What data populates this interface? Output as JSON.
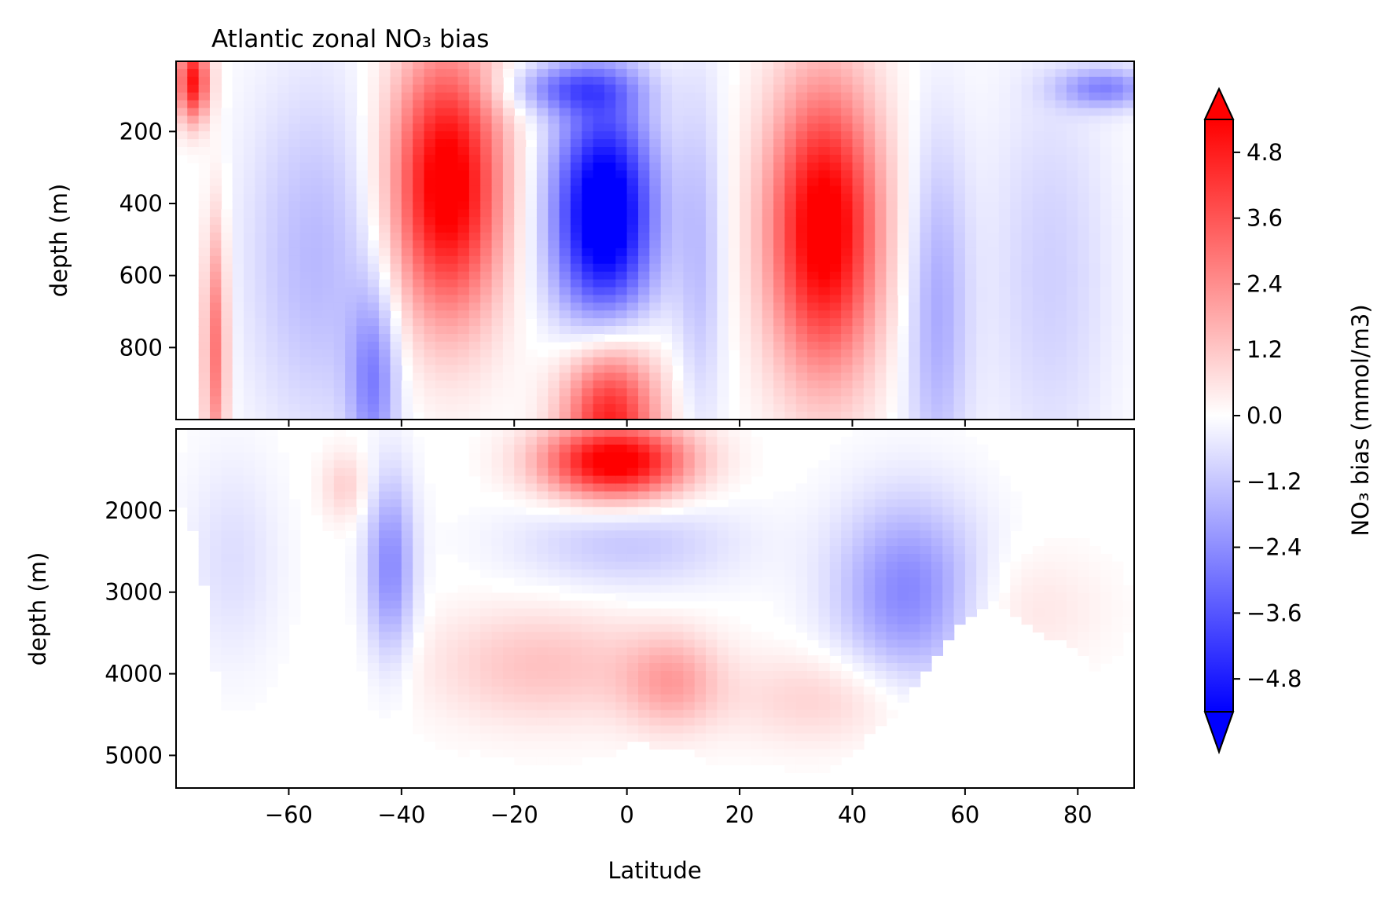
{
  "chart_data": {
    "type": "heatmap",
    "title": "Atlantic zonal NO₃ bias",
    "xlabel": "Latitude",
    "colorbar_label": "NO₃ bias (mmol/m3)",
    "colormap": {
      "low": "#0000ff",
      "mid": "#ffffff",
      "high": "#ff0000"
    },
    "clim": [
      -5.4,
      5.4
    ],
    "colorbar_extend": "both",
    "colorbar_ticks": [
      4.8,
      3.6,
      2.4,
      1.2,
      0.0,
      -1.2,
      -2.4,
      -3.6,
      -4.8
    ],
    "colorbar_tick_labels": [
      "4.8",
      "3.6",
      "2.4",
      "1.2",
      "0.0",
      "−1.2",
      "−2.4",
      "−3.6",
      "−4.8"
    ],
    "xlim": [
      -80,
      90
    ],
    "x_ticks": [
      -60,
      -40,
      -20,
      0,
      20,
      40,
      60,
      80
    ],
    "x_tick_labels": [
      "−60",
      "−40",
      "−20",
      "0",
      "20",
      "40",
      "60",
      "80"
    ],
    "panels": [
      {
        "name": "upper",
        "ylabel": "depth (m)",
        "ylim": [
          1000,
          5
        ],
        "y_ticks": [
          200,
          400,
          600,
          800
        ],
        "y_tick_labels": [
          "200",
          "400",
          "600",
          "800"
        ],
        "features": [
          {
            "lat": -32,
            "depth": 350,
            "value": 6.0,
            "sx": 7,
            "sy": 260
          },
          {
            "lat": -4,
            "depth": 430,
            "value": -6.5,
            "sx": 6.5,
            "sy": 230
          },
          {
            "lat": 35,
            "depth": 470,
            "value": 6.0,
            "sx": 7,
            "sy": 280
          },
          {
            "lat": -3,
            "depth": 1000,
            "value": 5.0,
            "sx": 6,
            "sy": 170
          },
          {
            "lat": -55,
            "depth": 550,
            "value": -1.5,
            "sx": 9,
            "sy": 350
          },
          {
            "lat": -45,
            "depth": 900,
            "value": -2.4,
            "sx": 3,
            "sy": 180
          },
          {
            "lat": 13,
            "depth": 550,
            "value": -1.3,
            "sx": 3,
            "sy": 350
          },
          {
            "lat": 55,
            "depth": 700,
            "value": -1.8,
            "sx": 4,
            "sy": 350
          },
          {
            "lat": 75,
            "depth": 600,
            "value": -1.0,
            "sx": 8,
            "sy": 400
          },
          {
            "lat": 85,
            "depth": 80,
            "value": -2.5,
            "sx": 6,
            "sy": 40
          },
          {
            "lat": -77,
            "depth": 60,
            "value": 5.0,
            "sx": 2,
            "sy": 80
          },
          {
            "lat": -73,
            "depth": 800,
            "value": 3.0,
            "sx": 1.5,
            "sy": 250
          },
          {
            "lat": -10,
            "depth": 80,
            "value": -2.5,
            "sx": 8,
            "sy": 50
          }
        ]
      },
      {
        "name": "lower",
        "ylabel": "depth (m)",
        "ylim": [
          5400,
          1000
        ],
        "y_ticks": [
          2000,
          3000,
          4000,
          5000
        ],
        "y_tick_labels": [
          "2000",
          "3000",
          "4000",
          "5000"
        ],
        "features": [
          {
            "lat": -2,
            "depth": 1400,
            "value": 6.0,
            "sx": 9,
            "sy": 330
          },
          {
            "lat": -42,
            "depth": 2700,
            "value": -2.5,
            "sx": 3,
            "sy": 800
          },
          {
            "lat": 50,
            "depth": 3000,
            "value": -2.6,
            "sx": 9,
            "sy": 800
          },
          {
            "lat": 0,
            "depth": 2400,
            "value": -1.2,
            "sx": 14,
            "sy": 400
          },
          {
            "lat": -15,
            "depth": 3900,
            "value": 1.3,
            "sx": 14,
            "sy": 500
          },
          {
            "lat": 8,
            "depth": 4100,
            "value": 1.8,
            "sx": 6,
            "sy": 400
          },
          {
            "lat": 35,
            "depth": 4300,
            "value": 1.0,
            "sx": 12,
            "sy": 400
          },
          {
            "lat": -50,
            "depth": 1700,
            "value": 1.0,
            "sx": 3,
            "sy": 300
          },
          {
            "lat": 70,
            "depth": 3200,
            "value": 0.6,
            "sx": 10,
            "sy": 500
          },
          {
            "lat": -70,
            "depth": 2600,
            "value": -0.7,
            "sx": 6,
            "sy": 900
          }
        ]
      }
    ],
    "lower_seafloor_profile": {
      "lat": [
        -80,
        -76,
        -74,
        -72,
        -70,
        -66,
        -62,
        -56,
        -50,
        -44,
        -38,
        -32,
        -26,
        -22,
        -18,
        -14,
        -10,
        -6,
        -2,
        2,
        6,
        10,
        16,
        22,
        28,
        34,
        40,
        44,
        46,
        50,
        54,
        58,
        62,
        66,
        70,
        76,
        80,
        84,
        90
      ],
      "depth": [
        1800,
        2400,
        3500,
        4500,
        4800,
        5000,
        5100,
        5000,
        4800,
        5000,
        4900,
        5100,
        4900,
        5200,
        5400,
        5400,
        5300,
        5300,
        5000,
        4800,
        4900,
        4900,
        5100,
        5300,
        5300,
        5200,
        5000,
        4600,
        4600,
        4200,
        3900,
        3500,
        3200,
        3100,
        3400,
        3600,
        3700,
        4100,
        4100
      ]
    }
  }
}
